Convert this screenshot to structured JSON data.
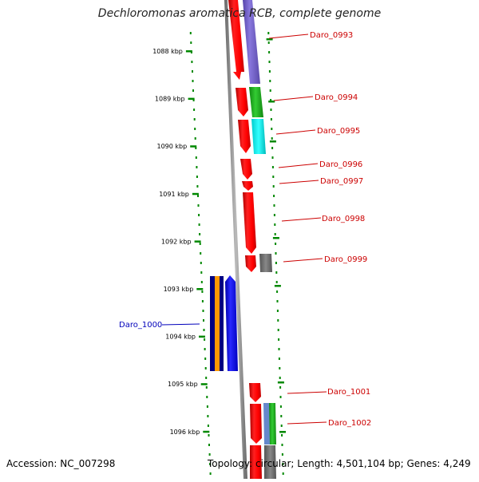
{
  "title": "Dechloromonas aromatica RCB, complete genome",
  "accession": "Accession: NC_007298",
  "topology": "Topology: circular; Length: 4,501,104 bp; Genes: 4,249",
  "ticks": [
    "1088 kbp",
    "1089 kbp",
    "1090 kbp",
    "1091 kbp",
    "1092 kbp",
    "1093 kbp",
    "1094 kbp",
    "1095 kbp",
    "1096 kbp"
  ],
  "genes": [
    {
      "id": "Daro_0993",
      "color": "#cc0000"
    },
    {
      "id": "Daro_0994",
      "color": "#cc0000"
    },
    {
      "id": "Daro_0995",
      "color": "#cc0000"
    },
    {
      "id": "Daro_0996",
      "color": "#cc0000"
    },
    {
      "id": "Daro_0997",
      "color": "#cc0000"
    },
    {
      "id": "Daro_0998",
      "color": "#cc0000"
    },
    {
      "id": "Daro_0999",
      "color": "#cc0000"
    },
    {
      "id": "Daro_1000",
      "color": "#0000bb"
    },
    {
      "id": "Daro_1001",
      "color": "#cc0000"
    },
    {
      "id": "Daro_1002",
      "color": "#cc0000"
    }
  ],
  "colors": {
    "forward_strand": "#ff0000",
    "reverse_strand": "#0000ff",
    "cog_purple": "#7766cc",
    "cog_green": "#22aa22",
    "cog_cyan": "#00eeee",
    "cog_gray": "#777777",
    "cog_orange": "#ff9900",
    "cog_navy": "#000080",
    "cog_steel": "#6688cc",
    "backbone": "#888888",
    "tick_green": "#008800"
  }
}
